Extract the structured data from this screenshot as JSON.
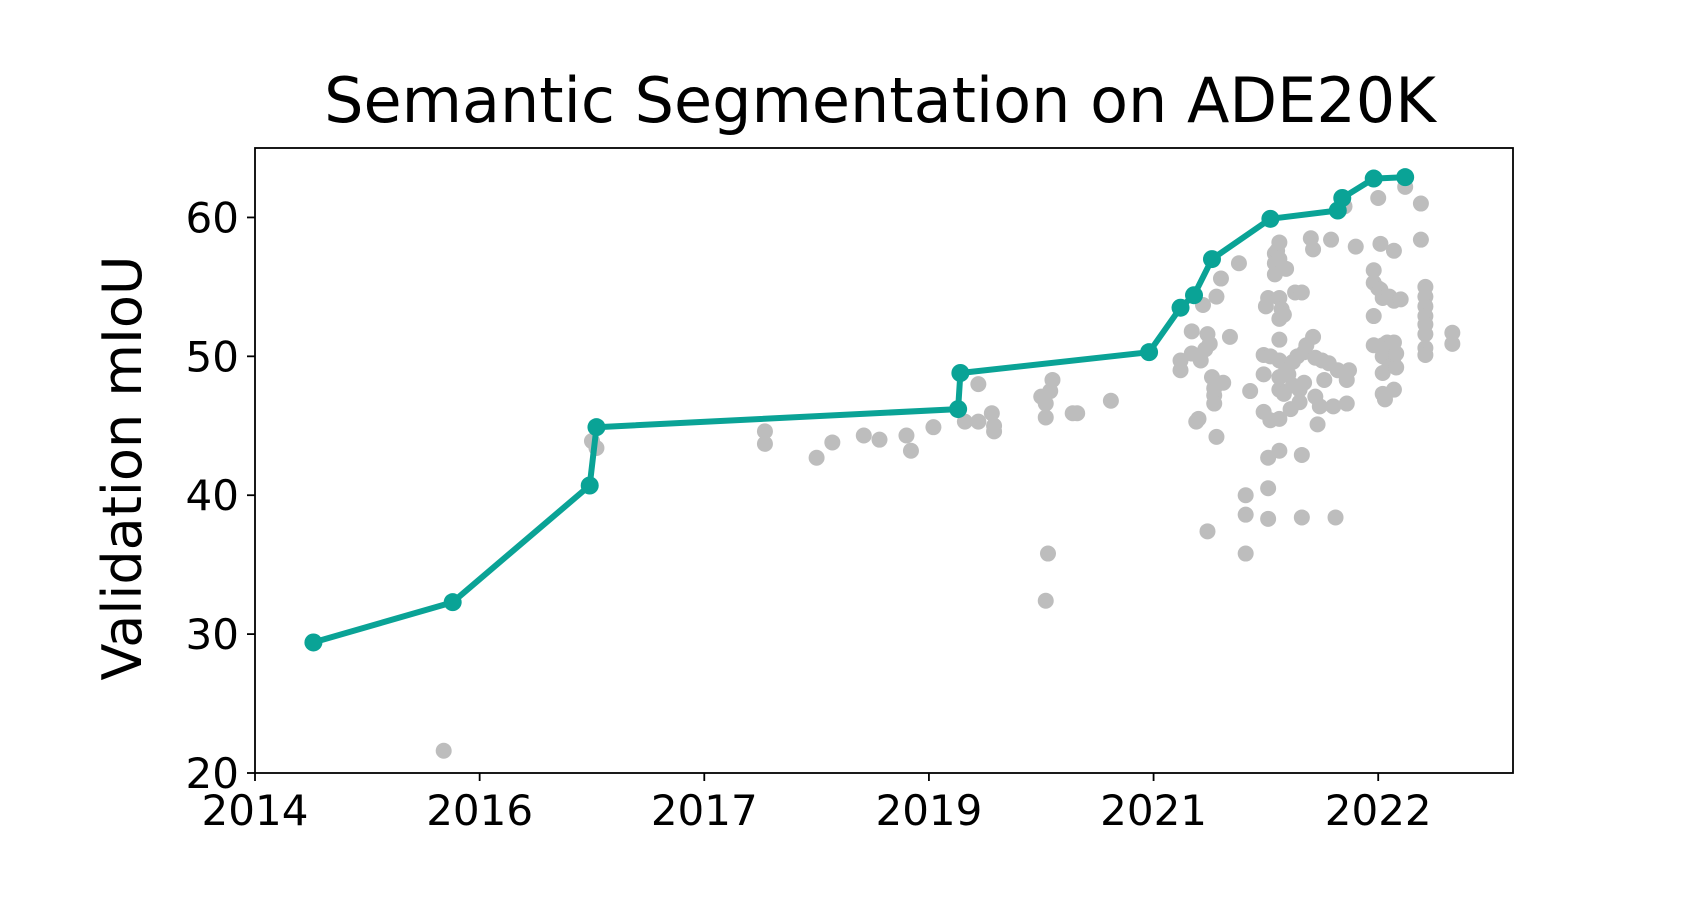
{
  "chart_data": {
    "type": "scatter",
    "title": "Semantic Segmentation on ADE20K",
    "xlabel": "",
    "ylabel": "Validation mIoU",
    "xlim": [
      2014,
      2019.6
    ],
    "ylim": [
      20,
      65
    ],
    "x_ticks": [
      {
        "value": 2014,
        "label": "2014"
      },
      {
        "value": 2015,
        "label": "2016"
      },
      {
        "value": 2016,
        "label": "2017"
      },
      {
        "value": 2017,
        "label": "2019"
      },
      {
        "value": 2018,
        "label": "2021"
      },
      {
        "value": 2019,
        "label": "2022"
      }
    ],
    "y_ticks": [
      20,
      30,
      40,
      50,
      60
    ],
    "grid": false,
    "colors": {
      "frontier": "#0aa396",
      "others": "#bdbdbd",
      "axis": "#000000"
    },
    "series": [
      {
        "role": "state-of-the-art frontier",
        "type": "line+markers",
        "points": [
          [
            2014.26,
            29.4
          ],
          [
            2014.88,
            32.3
          ],
          [
            2015.49,
            40.7
          ],
          [
            2015.52,
            44.9
          ],
          [
            2017.13,
            46.2
          ],
          [
            2017.14,
            48.8
          ],
          [
            2017.98,
            50.3
          ],
          [
            2018.12,
            53.5
          ],
          [
            2018.18,
            54.4
          ],
          [
            2018.26,
            57.0
          ],
          [
            2018.52,
            59.9
          ],
          [
            2018.82,
            60.5
          ],
          [
            2018.84,
            61.4
          ],
          [
            2018.98,
            62.8
          ],
          [
            2019.12,
            62.9
          ]
        ]
      },
      {
        "role": "other methods",
        "type": "scatter",
        "points": [
          [
            2014.84,
            21.6
          ],
          [
            2015.52,
            43.4
          ],
          [
            2015.5,
            43.9
          ],
          [
            2016.27,
            44.6
          ],
          [
            2016.27,
            43.7
          ],
          [
            2016.5,
            42.7
          ],
          [
            2016.57,
            43.8
          ],
          [
            2016.71,
            44.3
          ],
          [
            2016.78,
            44.0
          ],
          [
            2016.9,
            44.3
          ],
          [
            2016.92,
            43.2
          ],
          [
            2017.02,
            44.9
          ],
          [
            2017.16,
            45.3
          ],
          [
            2017.22,
            45.3
          ],
          [
            2017.22,
            48.0
          ],
          [
            2017.28,
            45.9
          ],
          [
            2017.29,
            45.0
          ],
          [
            2017.29,
            44.6
          ],
          [
            2017.5,
            47.1
          ],
          [
            2017.52,
            46.6
          ],
          [
            2017.52,
            45.6
          ],
          [
            2017.54,
            47.5
          ],
          [
            2017.55,
            48.3
          ],
          [
            2017.53,
            35.8
          ],
          [
            2017.52,
            32.4
          ],
          [
            2017.64,
            45.9
          ],
          [
            2017.66,
            45.9
          ],
          [
            2017.81,
            46.8
          ],
          [
            2018.12,
            49.0
          ],
          [
            2018.12,
            49.7
          ],
          [
            2018.17,
            51.8
          ],
          [
            2018.17,
            50.2
          ],
          [
            2018.19,
            45.3
          ],
          [
            2018.2,
            45.5
          ],
          [
            2018.21,
            49.7
          ],
          [
            2018.22,
            53.7
          ],
          [
            2018.23,
            50.5
          ],
          [
            2018.24,
            51.6
          ],
          [
            2018.24,
            37.4
          ],
          [
            2018.25,
            50.9
          ],
          [
            2018.26,
            48.5
          ],
          [
            2018.27,
            47.7
          ],
          [
            2018.27,
            47.2
          ],
          [
            2018.27,
            46.6
          ],
          [
            2018.28,
            44.2
          ],
          [
            2018.28,
            54.3
          ],
          [
            2018.3,
            55.6
          ],
          [
            2018.31,
            48.1
          ],
          [
            2018.34,
            51.4
          ],
          [
            2018.38,
            56.7
          ],
          [
            2018.41,
            40.0
          ],
          [
            2018.41,
            38.6
          ],
          [
            2018.41,
            35.8
          ],
          [
            2018.43,
            47.5
          ],
          [
            2018.49,
            50.1
          ],
          [
            2018.49,
            48.7
          ],
          [
            2018.49,
            46.0
          ],
          [
            2018.5,
            53.6
          ],
          [
            2018.51,
            54.2
          ],
          [
            2018.52,
            50.0
          ],
          [
            2018.52,
            45.4
          ],
          [
            2018.51,
            42.7
          ],
          [
            2018.51,
            40.5
          ],
          [
            2018.51,
            38.3
          ],
          [
            2018.54,
            57.4
          ],
          [
            2018.54,
            56.7
          ],
          [
            2018.54,
            55.9
          ],
          [
            2018.55,
            57.6
          ],
          [
            2018.56,
            58.2
          ],
          [
            2018.56,
            57.0
          ],
          [
            2018.56,
            54.2
          ],
          [
            2018.56,
            52.7
          ],
          [
            2018.57,
            53.4
          ],
          [
            2018.56,
            51.2
          ],
          [
            2018.56,
            49.7
          ],
          [
            2018.56,
            48.5
          ],
          [
            2018.56,
            47.6
          ],
          [
            2018.56,
            45.5
          ],
          [
            2018.56,
            43.2
          ],
          [
            2018.59,
            56.3
          ],
          [
            2018.58,
            53.0
          ],
          [
            2018.58,
            47.3
          ],
          [
            2018.59,
            49.0
          ],
          [
            2018.6,
            48.7
          ],
          [
            2018.61,
            46.2
          ],
          [
            2018.62,
            49.6
          ],
          [
            2018.62,
            47.9
          ],
          [
            2018.63,
            54.6
          ],
          [
            2018.64,
            50.0
          ],
          [
            2018.65,
            47.6
          ],
          [
            2018.65,
            46.7
          ],
          [
            2018.66,
            54.6
          ],
          [
            2018.66,
            42.9
          ],
          [
            2018.66,
            38.4
          ],
          [
            2018.67,
            50.3
          ],
          [
            2018.67,
            48.1
          ],
          [
            2018.68,
            50.8
          ],
          [
            2018.7,
            58.5
          ],
          [
            2018.71,
            57.7
          ],
          [
            2018.71,
            51.4
          ],
          [
            2018.72,
            49.9
          ],
          [
            2018.72,
            47.1
          ],
          [
            2018.73,
            45.1
          ],
          [
            2018.74,
            46.4
          ],
          [
            2018.75,
            49.7
          ],
          [
            2018.76,
            48.3
          ],
          [
            2018.78,
            49.5
          ],
          [
            2018.79,
            58.4
          ],
          [
            2018.8,
            46.4
          ],
          [
            2018.81,
            38.4
          ],
          [
            2018.82,
            49.0
          ],
          [
            2018.85,
            60.8
          ],
          [
            2018.86,
            46.6
          ],
          [
            2018.86,
            48.3
          ],
          [
            2018.87,
            49.0
          ],
          [
            2018.9,
            57.9
          ],
          [
            2018.98,
            56.2
          ],
          [
            2018.98,
            55.3
          ],
          [
            2018.98,
            52.9
          ],
          [
            2018.98,
            50.8
          ],
          [
            2019.0,
            61.4
          ],
          [
            2019.0,
            54.9
          ],
          [
            2019.01,
            58.1
          ],
          [
            2019.01,
            54.8
          ],
          [
            2019.02,
            54.2
          ],
          [
            2019.02,
            50.8
          ],
          [
            2019.02,
            50.0
          ],
          [
            2019.02,
            48.8
          ],
          [
            2019.02,
            47.3
          ],
          [
            2019.03,
            46.9
          ],
          [
            2019.04,
            51.0
          ],
          [
            2019.05,
            54.3
          ],
          [
            2019.05,
            50.3
          ],
          [
            2019.05,
            49.5
          ],
          [
            2019.06,
            50.8
          ],
          [
            2019.07,
            50.0
          ],
          [
            2019.07,
            49.4
          ],
          [
            2019.07,
            57.6
          ],
          [
            2019.07,
            54.0
          ],
          [
            2019.07,
            51.0
          ],
          [
            2019.07,
            47.6
          ],
          [
            2019.08,
            49.2
          ],
          [
            2019.08,
            50.2
          ],
          [
            2019.1,
            54.1
          ],
          [
            2019.12,
            62.2
          ],
          [
            2019.19,
            61.0
          ],
          [
            2019.19,
            58.4
          ],
          [
            2019.21,
            55.0
          ],
          [
            2019.21,
            54.3
          ],
          [
            2019.21,
            53.6
          ],
          [
            2019.21,
            52.9
          ],
          [
            2019.21,
            52.3
          ],
          [
            2019.21,
            51.6
          ],
          [
            2019.21,
            50.6
          ],
          [
            2019.21,
            50.1
          ],
          [
            2019.33,
            51.7
          ],
          [
            2019.33,
            50.9
          ]
        ]
      }
    ]
  }
}
